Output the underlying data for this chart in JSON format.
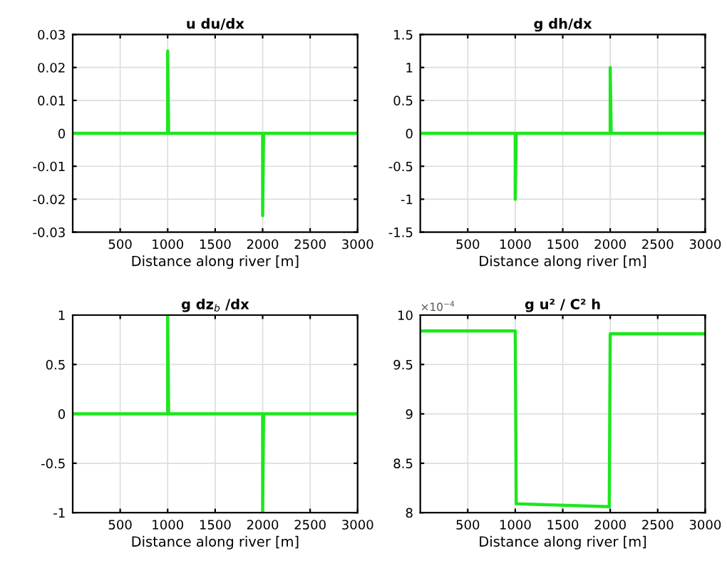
{
  "chart_data": [
    {
      "type": "line",
      "title": "u du/dx",
      "xlabel": "Distance along river [m]",
      "x": [
        0,
        1000,
        1000,
        1010,
        2000,
        2000,
        2010,
        3000
      ],
      "series": [
        {
          "color": "#1ee61e",
          "values": [
            0,
            0,
            0.025,
            0,
            0,
            -0.025,
            0,
            0
          ]
        }
      ],
      "xlim": [
        0,
        3000
      ],
      "xticks": [
        500,
        1000,
        1500,
        2000,
        2500,
        3000
      ],
      "ylim": [
        -0.03,
        0.03
      ],
      "yticks": [
        -0.03,
        -0.02,
        -0.01,
        0,
        0.01,
        0.02,
        0.03
      ],
      "grid": true
    },
    {
      "type": "line",
      "title": "g dh/dx",
      "xlabel": "Distance along river [m]",
      "x": [
        0,
        1000,
        1000,
        1010,
        2000,
        2000,
        2010,
        3000
      ],
      "series": [
        {
          "color": "#1ee61e",
          "values": [
            0,
            0,
            -1,
            0,
            0,
            1,
            0,
            0
          ]
        }
      ],
      "xlim": [
        0,
        3000
      ],
      "xticks": [
        500,
        1000,
        1500,
        2000,
        2500,
        3000
      ],
      "ylim": [
        -1.5,
        1.5
      ],
      "yticks": [
        -1.5,
        -1,
        -0.5,
        0,
        0.5,
        1,
        1.5
      ],
      "grid": true
    },
    {
      "type": "line",
      "title": "g dz$_{b}$ /dx",
      "xlabel": "Distance along river [m]",
      "x": [
        0,
        1000,
        1000,
        1010,
        2000,
        2000,
        2010,
        3000
      ],
      "series": [
        {
          "color": "#1ee61e",
          "values": [
            0,
            0,
            1,
            0,
            0,
            -1,
            0,
            0
          ]
        }
      ],
      "xlim": [
        0,
        3000
      ],
      "xticks": [
        500,
        1000,
        1500,
        2000,
        2500,
        3000
      ],
      "ylim": [
        -1,
        1
      ],
      "yticks": [
        -1,
        -0.5,
        0,
        0.5,
        1
      ],
      "grid": true
    },
    {
      "type": "line",
      "title": "g u² / C² h",
      "xlabel": "Distance along river [m]",
      "annotations": [
        "×10$^{−4}$"
      ],
      "x": [
        0,
        1000,
        1010,
        1990,
        2000,
        3000
      ],
      "series": [
        {
          "color": "#1ee61e",
          "values": [
            9.84,
            9.84,
            8.09,
            8.06,
            9.81,
            9.81
          ]
        }
      ],
      "xlim": [
        0,
        3000
      ],
      "xticks": [
        500,
        1000,
        1500,
        2000,
        2500,
        3000
      ],
      "ylim": [
        8,
        10
      ],
      "yticks": [
        8,
        8.5,
        9,
        9.5,
        10
      ],
      "grid": true
    }
  ]
}
